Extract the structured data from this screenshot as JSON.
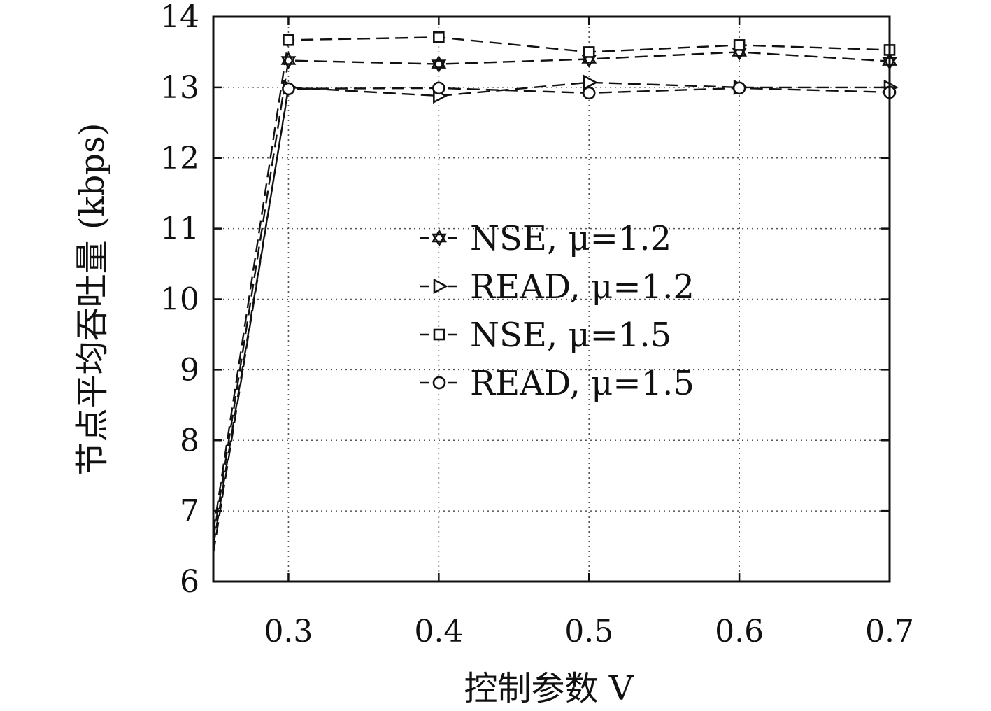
{
  "chart_data": {
    "type": "line",
    "xlabel": "控制参数 V",
    "ylabel": "节点平均吞吐量 (kbps)",
    "xlim": [
      0.25,
      0.7
    ],
    "ylim": [
      6,
      14
    ],
    "x_ticks": [
      0.3,
      0.4,
      0.5,
      0.6,
      0.7
    ],
    "x_tick_labels": [
      "0.3",
      "0.4",
      "0.5",
      "0.6",
      "0.7"
    ],
    "y_ticks": [
      6,
      7,
      8,
      9,
      10,
      11,
      12,
      13,
      14
    ],
    "y_tick_labels": [
      "6",
      "7",
      "8",
      "9",
      "10",
      "11",
      "12",
      "13",
      "14"
    ],
    "grid": true,
    "legend_position": "center",
    "series": [
      {
        "name": "NSE, μ=1.2",
        "marker": "star",
        "x": [
          0.25,
          0.3,
          0.4,
          0.5,
          0.6,
          0.7
        ],
        "y": [
          6.6,
          13.38,
          13.33,
          13.4,
          13.5,
          13.37
        ]
      },
      {
        "name": "READ, μ=1.2",
        "marker": "triangle-right",
        "x": [
          0.25,
          0.3,
          0.4,
          0.5,
          0.6,
          0.7
        ],
        "y": [
          6.4,
          13.0,
          12.88,
          13.07,
          13.0,
          13.0
        ]
      },
      {
        "name": "NSE, μ=1.5",
        "marker": "square",
        "x": [
          0.25,
          0.3,
          0.4,
          0.5,
          0.6,
          0.7
        ],
        "y": [
          6.7,
          13.67,
          13.71,
          13.5,
          13.6,
          13.53
        ]
      },
      {
        "name": "READ, μ=1.5",
        "marker": "circle",
        "x": [
          0.25,
          0.3,
          0.4,
          0.5,
          0.6,
          0.7
        ],
        "y": [
          6.5,
          12.98,
          12.99,
          12.92,
          12.99,
          12.93
        ]
      }
    ]
  }
}
